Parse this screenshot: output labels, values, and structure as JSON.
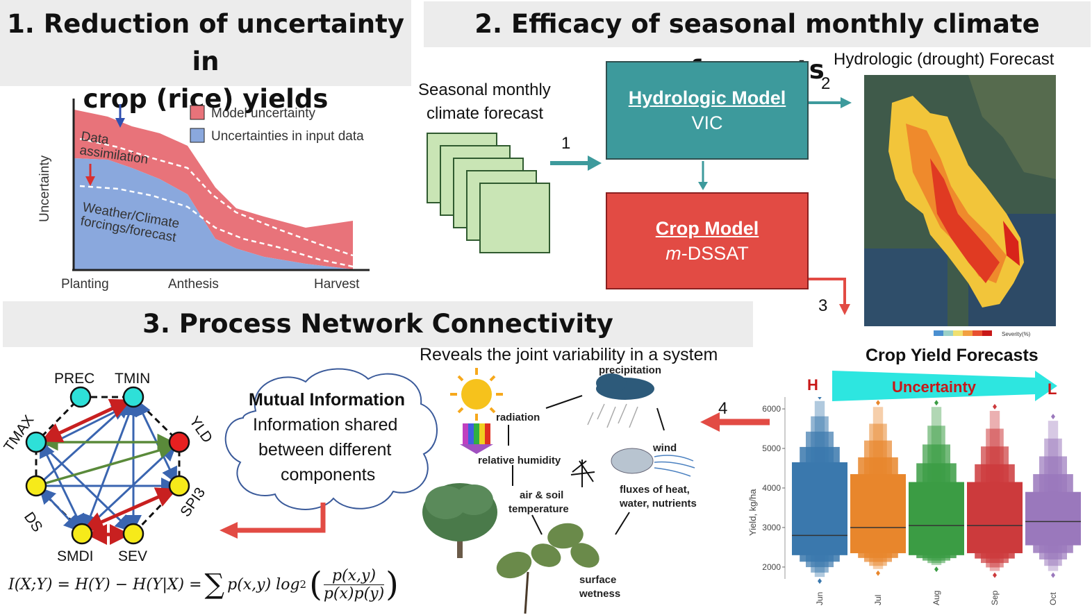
{
  "panel1": {
    "title_line1": "1. Reduction of uncertainty in",
    "title_line2": "crop (rice) yields",
    "y_axis_label": "Uncertainty",
    "legend": [
      "Model uncertainty",
      "Uncertainties in input data"
    ],
    "label_data_assimilation": [
      "Data",
      "assimilation"
    ],
    "label_weather": [
      "Weather/Climate",
      "forcings/forecast"
    ],
    "x_ticks": [
      "Planting",
      "Anthesis",
      "Harvest"
    ],
    "colors": {
      "model": "#e8737a",
      "input": "#8aa8dd",
      "arrow_blue": "#2f4fb0",
      "arrow_red": "#d83030"
    }
  },
  "panel2": {
    "title": "2. Efficacy of seasonal monthly climate forecasts",
    "forecast_label_line1": "Seasonal monthly",
    "forecast_label_line2": "climate forecast",
    "hydro_title": "Hydrologic Model",
    "hydro_sub": "VIC",
    "crop_title": "Crop Model",
    "crop_sub_italic": "m",
    "crop_sub_rest": "-DSSAT",
    "drought_label": "Hydrologic (drought) Forecast",
    "map_legend_label": "Severity(%)",
    "arrow_numbers": [
      "1",
      "2",
      "3",
      "4"
    ],
    "colors": {
      "teal": "#3d9a9c",
      "red": "#e24b44",
      "sheet": "#c9e5b5"
    }
  },
  "panel3": {
    "title": "3. Process Network Connectivity",
    "nodes": [
      "PREC",
      "TMIN",
      "YLD",
      "SPI3",
      "SEV",
      "SMDI",
      "DS",
      "TMAX"
    ],
    "cloud_title": "Mutual Information",
    "cloud_text": [
      "Information shared",
      "between different",
      "components"
    ],
    "formula": "I(X;Y) = H(Y) − H(Y|X) = ∑ p(x,y) log₂ ( p(x,y) / p(x)p(y) )",
    "formula_parts": {
      "lhs": "I(X;Y) = H(Y) − H(Y|X) =",
      "sum": "∑",
      "px": "p(x,y) log",
      "sub": "2",
      "num": "p(x,y)",
      "den": "p(x)p(y)"
    },
    "reveals": "Reveals the joint variability in a system",
    "process_labels": [
      "precipitation",
      "radiation",
      "wind",
      "relative humidity",
      "air & soil",
      "temperature",
      "fluxes of heat,",
      "water, nutrients",
      "surface",
      "wetness"
    ]
  },
  "panel4": {
    "title": "Crop Yield Forecasts",
    "uncertainty_label": "Uncertainty",
    "high": "H",
    "low": "L",
    "y_axis_label": "Yield, kg/ha",
    "chart_data": {
      "type": "boxen",
      "categories": [
        "Jun",
        "Jul",
        "Aug",
        "Sep",
        "Oct"
      ],
      "y_ticks": [
        2000,
        3000,
        4000,
        5000,
        6000
      ],
      "ylim": [
        1700,
        6300
      ],
      "series": [
        {
          "category": "Jun",
          "median": 2800,
          "q1": 2300,
          "q3": 4650,
          "min": 1750,
          "max": 6200
        },
        {
          "category": "Jul",
          "median": 3000,
          "q1": 2350,
          "q3": 4350,
          "min": 1950,
          "max": 6050
        },
        {
          "category": "Aug",
          "median": 3050,
          "q1": 2300,
          "q3": 4150,
          "min": 2050,
          "max": 6050
        },
        {
          "category": "Sep",
          "median": 3050,
          "q1": 2350,
          "q3": 4150,
          "min": 1900,
          "max": 5950
        },
        {
          "category": "Oct",
          "median": 3150,
          "q1": 2550,
          "q3": 3900,
          "min": 1900,
          "max": 5700
        }
      ],
      "colors": [
        "#3a78ad",
        "#e8862c",
        "#3b9c44",
        "#cc3a3c",
        "#9a78bc"
      ]
    }
  }
}
